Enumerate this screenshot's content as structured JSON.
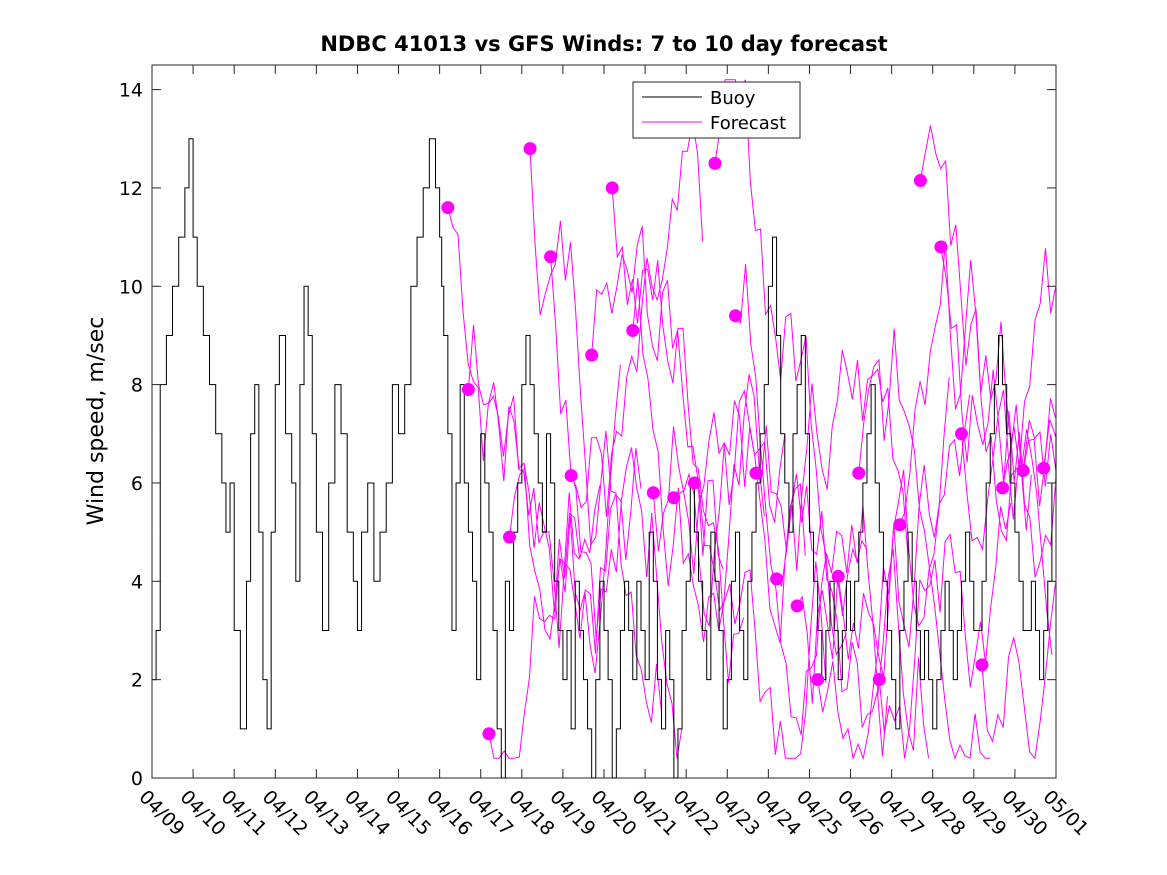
{
  "chart_data": {
    "type": "line",
    "title": "NDBC 41013 vs GFS Winds: 7 to 10 day forecast",
    "xlabel": "",
    "ylabel": "Wind speed, m/sec",
    "xlim": [
      "04/09",
      "05/01"
    ],
    "ylim": [
      0,
      14.5
    ],
    "x_tick_labels": [
      "04/09",
      "04/10",
      "04/11",
      "04/12",
      "04/13",
      "04/14",
      "04/15",
      "04/16",
      "04/17",
      "04/18",
      "04/19",
      "04/20",
      "04/21",
      "04/22",
      "04/23",
      "04/24",
      "04/25",
      "04/26",
      "04/27",
      "04/28",
      "04/29",
      "04/30",
      "05/01"
    ],
    "y_ticks": [
      0,
      2,
      4,
      6,
      8,
      10,
      12,
      14
    ],
    "grid": false,
    "legend_position": "top-center",
    "colors": {
      "buoy": "#000000",
      "forecast": "#ff00ff"
    },
    "series": [
      {
        "name": "Buoy",
        "x_days_from_04_09": [
          0.0,
          0.1,
          0.2,
          0.35,
          0.5,
          0.65,
          0.8,
          0.9,
          1.0,
          1.1,
          1.25,
          1.4,
          1.55,
          1.7,
          1.8,
          1.9,
          2.0,
          2.15,
          2.3,
          2.4,
          2.5,
          2.6,
          2.7,
          2.8,
          2.9,
          3.0,
          3.1,
          3.25,
          3.4,
          3.5,
          3.6,
          3.7,
          3.8,
          3.9,
          4.0,
          4.15,
          4.3,
          4.45,
          4.6,
          4.75,
          4.9,
          5.0,
          5.1,
          5.25,
          5.4,
          5.55,
          5.7,
          5.85,
          6.0,
          6.15,
          6.3,
          6.45,
          6.6,
          6.75,
          6.9,
          7.0,
          7.05,
          7.1,
          7.2,
          7.3,
          7.4,
          7.5,
          7.6,
          7.7,
          7.8,
          7.9,
          8.0,
          8.1,
          8.2,
          8.3,
          8.4,
          8.5,
          8.6,
          8.7,
          8.8,
          8.9,
          9.0,
          9.1,
          9.2,
          9.3,
          9.4,
          9.5,
          9.6,
          9.7,
          9.8,
          9.9,
          10.0,
          10.1,
          10.2,
          10.3,
          10.4,
          10.5,
          10.6,
          10.7,
          10.8,
          10.9,
          11.0,
          11.1,
          11.2,
          11.3,
          11.4,
          11.5,
          11.6,
          11.7,
          11.8,
          11.9,
          12.0,
          12.1,
          12.2,
          12.3,
          12.4,
          12.5,
          12.6,
          12.7,
          12.8,
          12.9,
          13.0,
          13.1,
          13.2,
          13.3,
          13.4,
          13.5,
          13.6,
          13.7,
          13.8,
          13.9,
          14.0,
          14.1,
          14.2,
          14.3,
          14.4,
          14.5,
          14.6,
          14.7,
          14.8,
          14.9,
          15.0,
          15.1,
          15.2,
          15.3,
          15.4,
          15.5,
          15.6,
          15.7,
          15.8,
          15.9,
          16.0,
          16.1,
          16.2,
          16.3,
          16.4,
          16.5,
          16.6,
          16.7,
          16.8,
          16.9,
          17.0,
          17.1,
          17.2,
          17.3,
          17.4,
          17.5,
          17.6,
          17.7,
          17.8,
          17.9,
          18.0,
          18.1,
          18.2,
          18.3,
          18.4,
          18.5,
          18.6,
          18.7,
          18.8,
          18.9,
          19.0,
          19.1,
          19.2,
          19.3,
          19.4,
          19.5,
          19.6,
          19.7,
          19.8,
          19.9,
          20.0,
          20.1,
          20.2,
          20.3,
          20.4,
          20.5,
          20.6,
          20.7,
          20.8,
          20.9,
          21.0,
          21.1,
          21.2,
          21.3,
          21.4,
          21.5,
          21.6,
          21.7,
          21.8,
          21.9,
          22.0
        ],
        "values": [
          2,
          3,
          8,
          9,
          10,
          11,
          12,
          13,
          11,
          10,
          9,
          8,
          7,
          6,
          5,
          6,
          3,
          1,
          4,
          7,
          8,
          5,
          2,
          1,
          5,
          8,
          9,
          7,
          6,
          4,
          8,
          10,
          9,
          7,
          5,
          3,
          6,
          8,
          7,
          5,
          4,
          3,
          5,
          6,
          4,
          5,
          6,
          8,
          7,
          8,
          10,
          11,
          12,
          13,
          12,
          11,
          10,
          9,
          7,
          3,
          6,
          8,
          6,
          5,
          4,
          2,
          7,
          6,
          5,
          3,
          1,
          0,
          4,
          3,
          5,
          6,
          8,
          9,
          8,
          7,
          6,
          5,
          7,
          6,
          4,
          3,
          2,
          3,
          1,
          4,
          3,
          2,
          1,
          0,
          2,
          4,
          3,
          2,
          0,
          1,
          3,
          4,
          3,
          2,
          4,
          3,
          2,
          5,
          4,
          2,
          1,
          3,
          2,
          0,
          1,
          3,
          4,
          6,
          5,
          4,
          3,
          2,
          5,
          4,
          3,
          1,
          2,
          4,
          5,
          3,
          2,
          4,
          5,
          6,
          7,
          8,
          10,
          11,
          9,
          7,
          6,
          5,
          7,
          8,
          9,
          7,
          5,
          4,
          3,
          2,
          3,
          4,
          3,
          2,
          3,
          4,
          3,
          4,
          5,
          6,
          7,
          8,
          6,
          5,
          4,
          3,
          2,
          1,
          3,
          4,
          5,
          4,
          3,
          2,
          3,
          2,
          1,
          2,
          3,
          4,
          3,
          2,
          3,
          4,
          5,
          4,
          3,
          3,
          4,
          6,
          7,
          8,
          9,
          8,
          7,
          6,
          5,
          4,
          3,
          3,
          4,
          3,
          2,
          3,
          4,
          6,
          7,
          8
        ]
      },
      {
        "name": "Forecast",
        "forecast_runs_start_days": [
          7.2,
          7.7,
          8.2,
          8.7,
          9.2,
          9.7,
          10.2,
          10.7,
          11.2,
          11.7,
          12.2,
          12.7,
          13.2,
          13.7,
          14.2,
          14.7,
          15.2,
          15.7,
          16.2,
          16.7,
          17.2,
          17.7,
          18.2,
          18.7,
          19.2,
          19.7,
          20.2,
          20.7,
          21.2,
          21.7
        ],
        "forecast_run_start_values": [
          11.6,
          7.9,
          0.9,
          4.9,
          12.8,
          10.6,
          6.15,
          8.6,
          12.0,
          9.1,
          5.8,
          5.7,
          6.0,
          12.5,
          9.4,
          6.2,
          4.05,
          3.5,
          2.0,
          4.1,
          6.2,
          2.0,
          5.15,
          12.15,
          10.8,
          7.0,
          2.3,
          5.9,
          6.25,
          6.3
        ]
      }
    ]
  }
}
